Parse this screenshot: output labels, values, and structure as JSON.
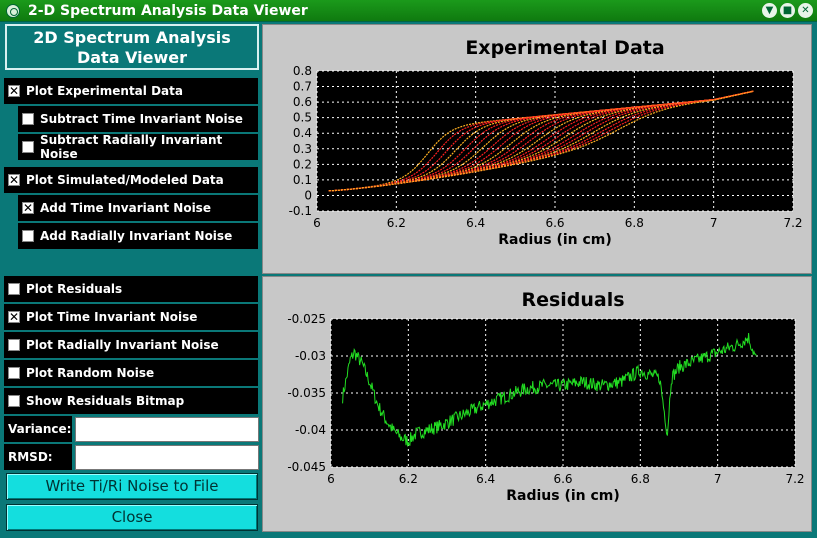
{
  "window": {
    "title": "2-D Spectrum Analysis Data Viewer",
    "icon": "app-icon",
    "controls": [
      "minimize-icon",
      "maximize-icon",
      "close-icon"
    ]
  },
  "panel": {
    "banner": [
      "2D Spectrum Analysis",
      "Data Viewer"
    ],
    "options": [
      {
        "label": "Plot Experimental Data",
        "checked": true
      },
      {
        "label": "Subtract Time Invariant Noise",
        "checked": false
      },
      {
        "label": "Subtract Radially Invariant Noise",
        "checked": false
      },
      {
        "label": "Plot Simulated/Modeled Data",
        "checked": true
      },
      {
        "label": "Add Time Invariant Noise",
        "checked": true
      },
      {
        "label": "Add Radially Invariant Noise",
        "checked": false
      },
      {
        "label": "Plot Residuals",
        "checked": false
      },
      {
        "label": "Plot Time Invariant Noise",
        "checked": true
      },
      {
        "label": "Plot Radially Invariant Noise",
        "checked": false
      },
      {
        "label": "Plot Random Noise",
        "checked": false
      },
      {
        "label": "Show Residuals Bitmap",
        "checked": false
      }
    ],
    "variance_label": "Variance:",
    "variance_value": "",
    "rmsd_label": "RMSD:",
    "rmsd_value": "",
    "write_button": "Write Ti/Ri Noise to File",
    "close_button": "Close"
  },
  "chart_data": [
    {
      "type": "line",
      "title": "Experimental Data",
      "xlabel": "Radius (in cm)",
      "ylabel": "",
      "xlim": [
        6.0,
        7.2
      ],
      "ylim": [
        -0.1,
        0.8
      ],
      "xticks": [
        "6",
        "6.2",
        "6.4",
        "6.6",
        "6.8",
        "7",
        "7.2"
      ],
      "yticks": [
        "0.8",
        "0.7",
        "0.6",
        "0.5",
        "0.4",
        "0.3",
        "0.2",
        "0.1",
        "0",
        "-0.1"
      ],
      "grid": true,
      "color": "#ff2020",
      "scan_family": {
        "count": 22,
        "x_range": [
          6.03,
          7.1
        ],
        "baseline_start": 0.03,
        "baseline_end": 0.52,
        "plateau_start": 0.38,
        "plateau_end": 0.64,
        "end_value": 0.67,
        "first_boundary": 6.28,
        "last_boundary": 6.78
      }
    },
    {
      "type": "line",
      "title": "Residuals",
      "xlabel": "Radius (in cm)",
      "ylabel": "",
      "xlim": [
        6.0,
        7.2
      ],
      "ylim": [
        -0.045,
        -0.025
      ],
      "xticks": [
        "6",
        "6.2",
        "6.4",
        "6.6",
        "6.8",
        "7",
        "7.2"
      ],
      "yticks": [
        "-0.025",
        "-0.03",
        "-0.035",
        "-0.04",
        "-0.045"
      ],
      "grid": true,
      "color": "#22dd22",
      "series": [
        {
          "x": [
            6.03,
            6.05,
            6.06,
            6.08,
            6.1,
            6.12,
            6.14,
            6.16,
            6.18,
            6.2,
            6.22,
            6.25,
            6.28,
            6.32,
            6.36,
            6.4,
            6.45,
            6.5,
            6.55,
            6.6,
            6.65,
            6.7,
            6.75,
            6.8,
            6.85,
            6.87,
            6.88,
            6.9,
            6.95,
            7.0,
            7.05,
            7.08,
            7.1
          ],
          "y": [
            -0.0355,
            -0.0305,
            -0.0295,
            -0.031,
            -0.0335,
            -0.0365,
            -0.0385,
            -0.04,
            -0.041,
            -0.0415,
            -0.0405,
            -0.04,
            -0.0395,
            -0.0385,
            -0.0375,
            -0.0365,
            -0.0355,
            -0.0345,
            -0.034,
            -0.034,
            -0.0335,
            -0.034,
            -0.0335,
            -0.032,
            -0.033,
            -0.0405,
            -0.033,
            -0.0315,
            -0.0305,
            -0.0295,
            -0.0285,
            -0.0275,
            -0.0305
          ]
        }
      ]
    }
  ]
}
